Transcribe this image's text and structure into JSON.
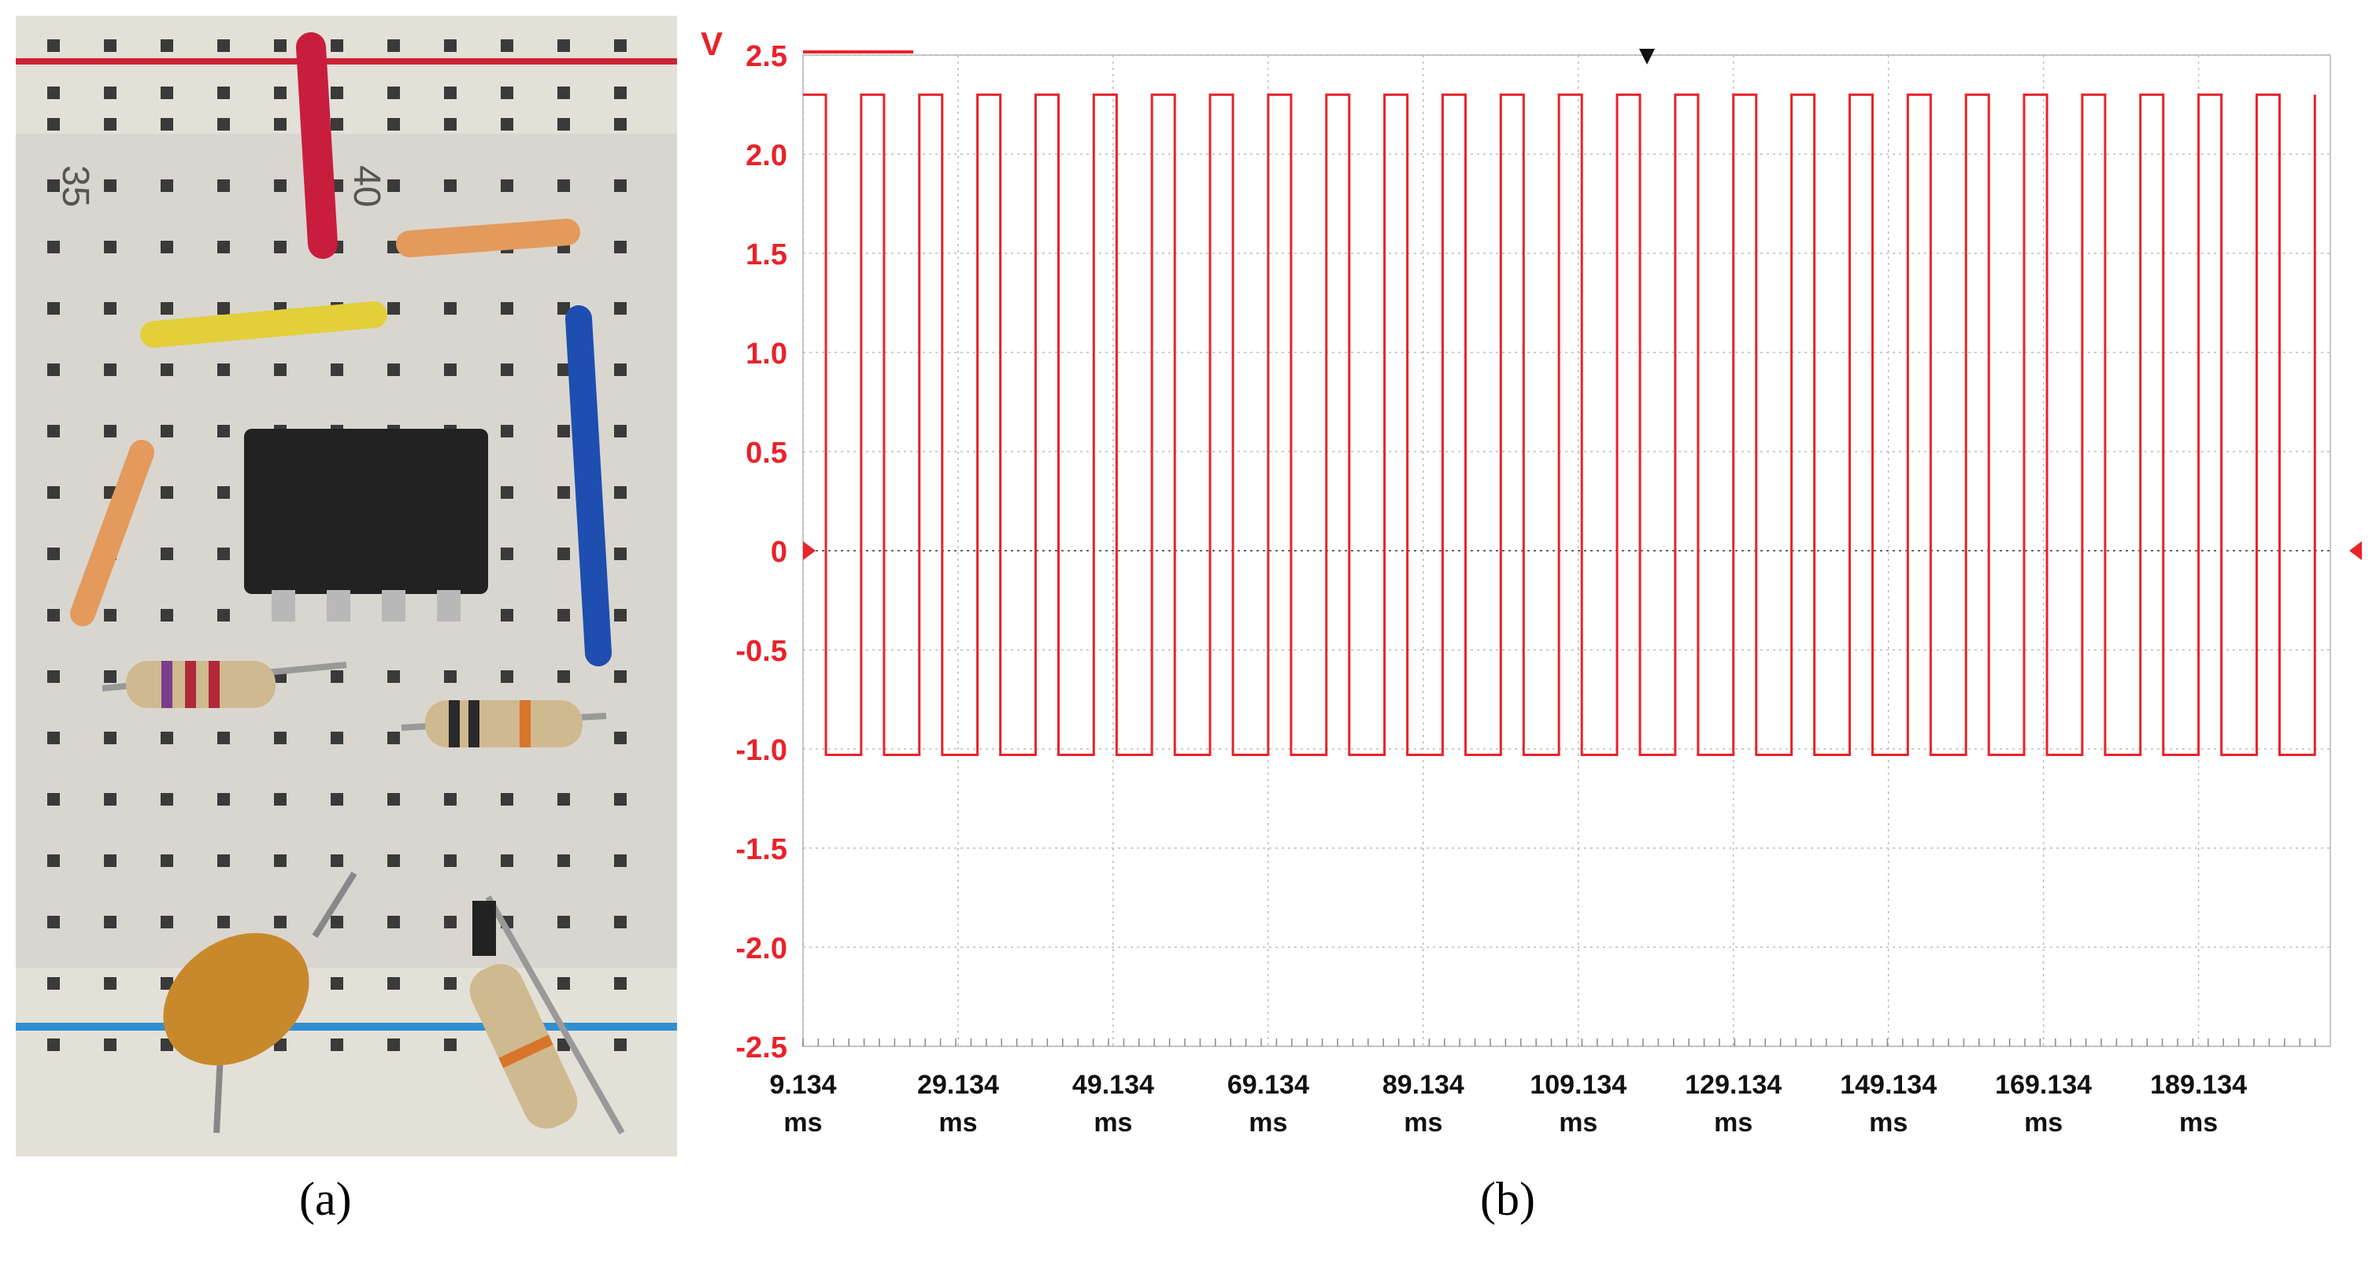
{
  "panels": {
    "a": {
      "caption": "(a)"
    },
    "b": {
      "caption": "(b)"
    }
  },
  "breadboard": {
    "row_labels": [
      "35",
      "40"
    ],
    "wire_colors": {
      "rail_top": "#cc2233",
      "rail_bottom": "#2f8fd0",
      "red": "#c91d3e",
      "orange": "#e49a5c",
      "yellow": "#e2cf3a",
      "blue": "#1d4eb0",
      "chip": "#222222"
    }
  },
  "chart_data": {
    "type": "line",
    "ylabel": "V",
    "xlabel": "",
    "ylim": [
      -2.5,
      2.5
    ],
    "xlim": [
      9.134,
      206.134
    ],
    "y_ticks": [
      "2.5",
      "2.0",
      "1.5",
      "1.0",
      "0.5",
      "0",
      "-0.5",
      "-1.0",
      "-1.5",
      "-2.0",
      "-2.5"
    ],
    "x_ticks": [
      {
        "value": 9.134,
        "label": "9.134",
        "unit": "ms"
      },
      {
        "value": 29.134,
        "label": "29.134",
        "unit": "ms"
      },
      {
        "value": 49.134,
        "label": "49.134",
        "unit": "ms"
      },
      {
        "value": 69.134,
        "label": "69.134",
        "unit": "ms"
      },
      {
        "value": 89.134,
        "label": "89.134",
        "unit": "ms"
      },
      {
        "value": 109.134,
        "label": "109.134",
        "unit": "ms"
      },
      {
        "value": 129.134,
        "label": "129.134",
        "unit": "ms"
      },
      {
        "value": 149.134,
        "label": "149.134",
        "unit": "ms"
      },
      {
        "value": 169.134,
        "label": "169.134",
        "unit": "ms"
      },
      {
        "value": 189.134,
        "label": "189.134",
        "unit": "ms"
      }
    ],
    "grid": true,
    "series": [
      {
        "waveform": "square",
        "color": "#e8232a",
        "high_v": 2.3,
        "low_v": -1.03,
        "period_ms": 7.5,
        "cycles": 26,
        "duty": 0.5,
        "first_rise_ms": 9.134
      }
    ],
    "markers": [
      "trigger-level-left",
      "trigger-level-right",
      "trigger-position-top"
    ]
  }
}
